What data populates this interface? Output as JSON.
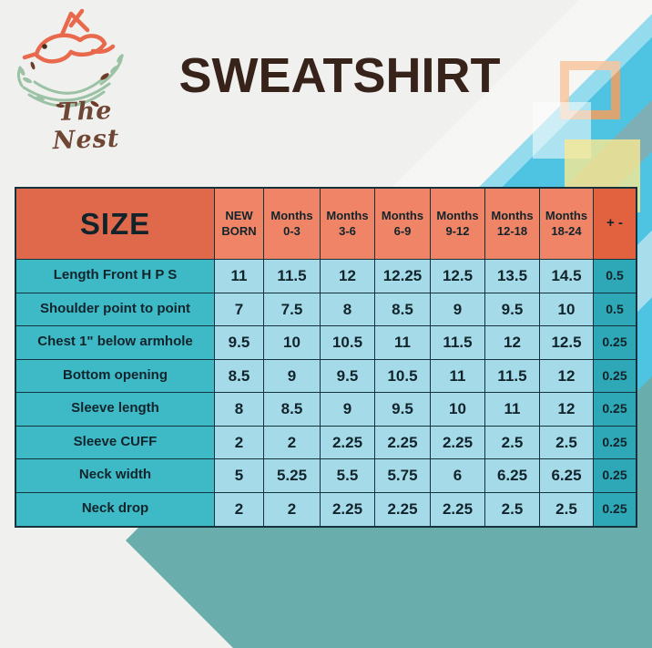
{
  "brand": {
    "name": "The Nest"
  },
  "title": "SWEATSHIRT",
  "palette": {
    "background_gray": "#F0F0EF",
    "title_brown": "#38231A",
    "brand_brown": "#6F4633",
    "bird_coral": "#E8694B",
    "nest_green": "#9CC2A6",
    "header_size_orange": "#E0694B",
    "header_column_orange": "#EF8466",
    "header_tolerance_orange": "#E2613F",
    "row_label_teal": "#3EBAC7",
    "value_cell_blue": "#A5DBE9",
    "tolerance_cell_teal": "#2EA8B6",
    "stripe_cyan": "#4EC3E2",
    "stripe_light_cyan": "#A8DEEC",
    "stripe_gray_teal": "#7EAEB6",
    "stripe_muted_teal": "#69AEAC",
    "square_orange": "#F3A05E",
    "square_yellow": "#FAE992"
  },
  "chart_data": {
    "type": "table",
    "title": "SWEATSHIRT",
    "header": {
      "size_label": "SIZE",
      "columns": [
        "NEW BORN",
        "Months 0-3",
        "Months 3-6",
        "Months 6-9",
        "Months 9-12",
        "Months 12-18",
        "Months 18-24"
      ],
      "tolerance_label": "+ -"
    },
    "rows": [
      {
        "label": "Length Front H P S",
        "values": [
          "11",
          "11.5",
          "12",
          "12.25",
          "12.5",
          "13.5",
          "14.5"
        ],
        "tolerance": "0.5"
      },
      {
        "label": "Shoulder point to point",
        "values": [
          "7",
          "7.5",
          "8",
          "8.5",
          "9",
          "9.5",
          "10"
        ],
        "tolerance": "0.5"
      },
      {
        "label": "Chest 1\" below armhole",
        "values": [
          "9.5",
          "10",
          "10.5",
          "11",
          "11.5",
          "12",
          "12.5"
        ],
        "tolerance": "0.25"
      },
      {
        "label": "Bottom opening",
        "values": [
          "8.5",
          "9",
          "9.5",
          "10.5",
          "11",
          "11.5",
          "12"
        ],
        "tolerance": "0.25"
      },
      {
        "label": "Sleeve length",
        "values": [
          "8",
          "8.5",
          "9",
          "9.5",
          "10",
          "11",
          "12"
        ],
        "tolerance": "0.25"
      },
      {
        "label": "Sleeve CUFF",
        "values": [
          "2",
          "2",
          "2.25",
          "2.25",
          "2.25",
          "2.5",
          "2.5"
        ],
        "tolerance": "0.25"
      },
      {
        "label": "Neck width",
        "values": [
          "5",
          "5.25",
          "5.5",
          "5.75",
          "6",
          "6.25",
          "6.25"
        ],
        "tolerance": "0.25"
      },
      {
        "label": "Neck drop",
        "values": [
          "2",
          "2",
          "2.25",
          "2.25",
          "2.25",
          "2.5",
          "2.5"
        ],
        "tolerance": "0.25"
      }
    ]
  }
}
